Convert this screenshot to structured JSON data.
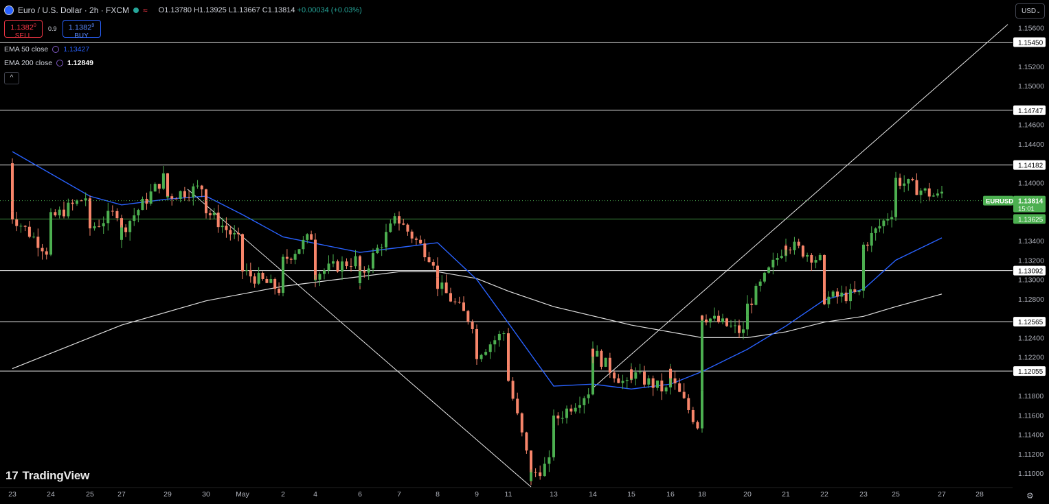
{
  "header": {
    "title": "Euro / U.S. Dollar · 2h · FXCM",
    "open": "O1.13780",
    "high": "H1.13925",
    "low": "L1.13667",
    "close": "C1.13814",
    "change": "+0.00034 (+0.03%)"
  },
  "trade": {
    "sell_price": "1.1382",
    "sell_sup": "0",
    "sell_label": "SELL",
    "spread": "0.9",
    "buy_price": "1.1382",
    "buy_sup": "9",
    "buy_label": "BUY"
  },
  "indicators": [
    {
      "label": "EMA 50 close",
      "value": "1.13427",
      "color": "#2962ff"
    },
    {
      "label": "EMA 200 close",
      "value": "1.12849",
      "color": "#e0e0e0"
    }
  ],
  "collapse_icon": "chevron-up-icon",
  "currency_selector": "USD",
  "logo_text": "TradingView",
  "settings_icon": "gear-icon",
  "colors": {
    "background": "#000000",
    "up": "#4caf50",
    "down": "#f7856a",
    "ema50": "#2962ff",
    "ema200": "#e0e0e0",
    "price_label": "#4caf50"
  },
  "chart_data": {
    "type": "candlestick",
    "symbol": "EURUSD",
    "last_price": "1.13814",
    "countdown": "15:01",
    "y_ticks": [
      "1.15600",
      "1.15200",
      "1.15000",
      "1.14600",
      "1.14400",
      "1.14000",
      "1.13400",
      "1.13200",
      "1.13000",
      "1.12800",
      "1.12400",
      "1.12200",
      "1.11800",
      "1.11600",
      "1.11400",
      "1.11200",
      "1.11000"
    ],
    "ylim": [
      1.1086,
      1.158
    ],
    "x_ticks": [
      "23",
      "24",
      "25",
      "27",
      "29",
      "30",
      "May",
      "2",
      "4",
      "6",
      "7",
      "8",
      "9",
      "11",
      "13",
      "14",
      "15",
      "16",
      "18",
      "20",
      "21",
      "22",
      "23",
      "25",
      "27",
      "28"
    ],
    "horizontal_levels": [
      {
        "label": "1.15450",
        "value": 1.1545
      },
      {
        "label": "1.14747",
        "value": 1.14747
      },
      {
        "label": "1.14182",
        "value": 1.14182
      },
      {
        "label": "1.13625",
        "value": 1.13625
      },
      {
        "label": "1.13092",
        "value": 1.13092
      },
      {
        "label": "1.12565",
        "value": 1.12565
      },
      {
        "label": "1.12055",
        "value": 1.12055
      }
    ],
    "channel": {
      "lower": [
        {
          "x": "12",
          "y": 1.1086
        },
        {
          "x": "27",
          "y": 1.136
        }
      ],
      "upper": [
        {
          "x": "14",
          "y": 1.1188
        },
        {
          "x": "27",
          "y": 1.153
        }
      ]
    },
    "ema50_path": [
      {
        "x": "23",
        "y": 1.1432
      },
      {
        "x": "25",
        "y": 1.1386
      },
      {
        "x": "27",
        "y": 1.1377
      },
      {
        "x": "29",
        "y": 1.1383
      },
      {
        "x": "30",
        "y": 1.1386
      },
      {
        "x": "May",
        "y": 1.1367
      },
      {
        "x": "2",
        "y": 1.1344
      },
      {
        "x": "6",
        "y": 1.1328
      },
      {
        "x": "7",
        "y": 1.1333
      },
      {
        "x": "8",
        "y": 1.1338
      },
      {
        "x": "9",
        "y": 1.13
      },
      {
        "x": "11",
        "y": 1.1255
      },
      {
        "x": "13",
        "y": 1.119
      },
      {
        "x": "14",
        "y": 1.1192
      },
      {
        "x": "15",
        "y": 1.1187
      },
      {
        "x": "16",
        "y": 1.1192
      },
      {
        "x": "18",
        "y": 1.1205
      },
      {
        "x": "20",
        "y": 1.1228
      },
      {
        "x": "21",
        "y": 1.1252
      },
      {
        "x": "22",
        "y": 1.1279
      },
      {
        "x": "23",
        "y": 1.129
      },
      {
        "x": "25",
        "y": 1.132
      },
      {
        "x": "27",
        "y": 1.1343
      }
    ],
    "ema200_path": [
      {
        "x": "23",
        "y": 1.1208
      },
      {
        "x": "25",
        "y": 1.124
      },
      {
        "x": "27",
        "y": 1.1253
      },
      {
        "x": "30",
        "y": 1.1278
      },
      {
        "x": "2",
        "y": 1.1293
      },
      {
        "x": "6",
        "y": 1.1303
      },
      {
        "x": "7",
        "y": 1.1308
      },
      {
        "x": "8",
        "y": 1.1308
      },
      {
        "x": "9",
        "y": 1.1301
      },
      {
        "x": "11",
        "y": 1.1288
      },
      {
        "x": "13",
        "y": 1.1272
      },
      {
        "x": "15",
        "y": 1.1253
      },
      {
        "x": "18",
        "y": 1.124
      },
      {
        "x": "20",
        "y": 1.124
      },
      {
        "x": "21",
        "y": 1.1246
      },
      {
        "x": "22",
        "y": 1.1256
      },
      {
        "x": "23",
        "y": 1.1262
      },
      {
        "x": "25",
        "y": 1.1272
      },
      {
        "x": "27",
        "y": 1.1285
      }
    ],
    "close_path": [
      {
        "x": "23",
        "y": 1.142
      },
      {
        "x": "23",
        "y": 1.137
      },
      {
        "x": "24",
        "y": 1.133
      },
      {
        "x": "24",
        "y": 1.136
      },
      {
        "x": "25",
        "y": 1.1385
      },
      {
        "x": "25",
        "y": 1.135
      },
      {
        "x": "27",
        "y": 1.137
      },
      {
        "x": "27",
        "y": 1.1345
      },
      {
        "x": "29",
        "y": 1.1405
      },
      {
        "x": "29",
        "y": 1.1385
      },
      {
        "x": "30",
        "y": 1.1395
      },
      {
        "x": "30",
        "y": 1.1375
      },
      {
        "x": "May",
        "y": 1.134
      },
      {
        "x": "May",
        "y": 1.131
      },
      {
        "x": "2",
        "y": 1.129
      },
      {
        "x": "2",
        "y": 1.1315
      },
      {
        "x": "4",
        "y": 1.1345
      },
      {
        "x": "4",
        "y": 1.1305
      },
      {
        "x": "6",
        "y": 1.132
      },
      {
        "x": "6",
        "y": 1.1295
      },
      {
        "x": "7",
        "y": 1.136
      },
      {
        "x": "7",
        "y": 1.1365
      },
      {
        "x": "8",
        "y": 1.132
      },
      {
        "x": "8",
        "y": 1.13
      },
      {
        "x": "9",
        "y": 1.1255
      },
      {
        "x": "9",
        "y": 1.122
      },
      {
        "x": "11",
        "y": 1.1245
      },
      {
        "x": "11",
        "y": 1.1215
      },
      {
        "x": "12",
        "y": 1.112
      },
      {
        "x": "12",
        "y": 1.1095
      },
      {
        "x": "13",
        "y": 1.111
      },
      {
        "x": "13",
        "y": 1.115
      },
      {
        "x": "14",
        "y": 1.1185
      },
      {
        "x": "14",
        "y": 1.123
      },
      {
        "x": "15",
        "y": 1.119
      },
      {
        "x": "15",
        "y": 1.1205
      },
      {
        "x": "16",
        "y": 1.1185
      },
      {
        "x": "16",
        "y": 1.1205
      },
      {
        "x": "18",
        "y": 1.115
      },
      {
        "x": "18",
        "y": 1.119
      },
      {
        "x": "18",
        "y": 1.1265
      },
      {
        "x": "20",
        "y": 1.1245
      },
      {
        "x": "20",
        "y": 1.1265
      },
      {
        "x": "21",
        "y": 1.133
      },
      {
        "x": "21",
        "y": 1.134
      },
      {
        "x": "22",
        "y": 1.132
      },
      {
        "x": "22",
        "y": 1.128
      },
      {
        "x": "23",
        "y": 1.1285
      },
      {
        "x": "23",
        "y": 1.133
      },
      {
        "x": "25",
        "y": 1.137
      },
      {
        "x": "25",
        "y": 1.1405
      },
      {
        "x": "27",
        "y": 1.1385
      },
      {
        "x": "27",
        "y": 1.139
      }
    ]
  }
}
